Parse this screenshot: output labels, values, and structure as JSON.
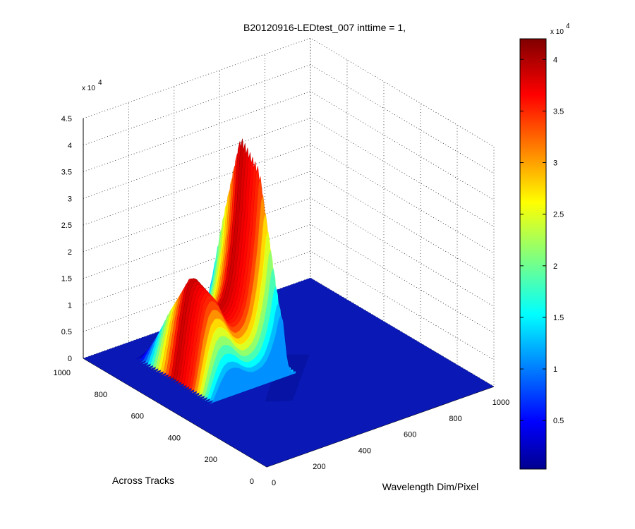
{
  "chart_data": {
    "type": "surface",
    "title": "B20120916-LEDtest_007 inttime = 1,",
    "xlabel": "Wavelength Dim/Pixel",
    "ylabel": "Across Tracks",
    "zlabel": "",
    "xlim": [
      0,
      1000
    ],
    "ylim": [
      0,
      1000
    ],
    "zlim": [
      0,
      45000
    ],
    "x_ticks": [
      "0",
      "200",
      "400",
      "600",
      "800",
      "1000"
    ],
    "y_ticks": [
      "0",
      "200",
      "400",
      "600",
      "800",
      "1000"
    ],
    "z_ticks": [
      "0",
      "0.5",
      "1",
      "1.5",
      "2",
      "2.5",
      "3",
      "3.5",
      "4",
      "4.5"
    ],
    "z_exponent": "x 10",
    "z_exponent_power": "4",
    "colormap": "jet",
    "grid": true,
    "colorbar": {
      "range": [
        300,
        42000
      ],
      "ticks": [
        "0.5",
        "1",
        "1.5",
        "2",
        "2.5",
        "3",
        "3.5",
        "4"
      ],
      "exponent": "x 10",
      "exponent_power": "4"
    },
    "profile_along_wavelength": {
      "description_free": true,
      "x": [
        0,
        50,
        100,
        150,
        170,
        190,
        210,
        230,
        250,
        270,
        290,
        310,
        330,
        350,
        370,
        390,
        410,
        430,
        440,
        450,
        460,
        470,
        480,
        500,
        550,
        600,
        700,
        800,
        900,
        1000
      ],
      "z": [
        0,
        0,
        0,
        0,
        6000,
        12000,
        16500,
        18000,
        17500,
        16000,
        13500,
        11500,
        10500,
        10800,
        12000,
        15000,
        21000,
        30000,
        38000,
        42000,
        37000,
        22000,
        8000,
        1500,
        0,
        0,
        0,
        0,
        0,
        0
      ]
    },
    "profile_across_tracks": {
      "y": [
        0,
        100,
        200,
        300,
        400,
        500,
        600,
        700,
        800,
        900,
        1000
      ],
      "z": [
        0,
        0,
        0,
        0,
        0,
        0.35,
        0.9,
        1.0,
        0.55,
        0,
        0
      ]
    }
  }
}
